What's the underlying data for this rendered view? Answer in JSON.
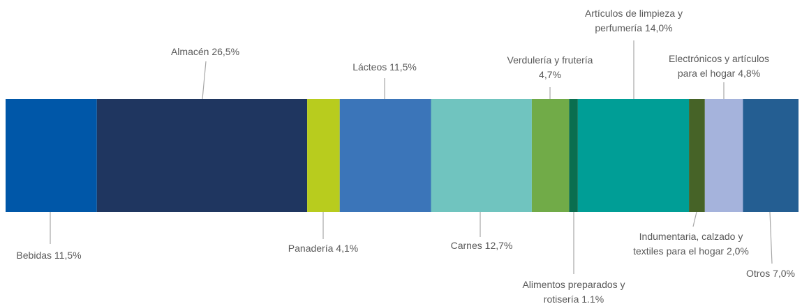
{
  "chart_data": {
    "type": "stacked_bar",
    "categories": [
      [
        "Bebidas"
      ],
      [
        "Almacén"
      ],
      [
        "Panadería"
      ],
      [
        "Lácteos"
      ],
      [
        "Carnes"
      ],
      [
        "Verdulería y frutería"
      ],
      [
        "Alimentos preparados y",
        "rotisería"
      ],
      [
        "Artículos de limpieza y",
        "perfumería"
      ],
      [
        "Indumentaria, calzado y",
        "textiles para el hogar"
      ],
      [
        "Electrónicos y artículos",
        "para el hogar"
      ],
      [
        "Otros"
      ]
    ],
    "values": [
      11.5,
      26.5,
      4.1,
      11.5,
      12.7,
      4.7,
      1.1,
      14.0,
      2.0,
      4.8,
      7.0
    ],
    "value_labels": [
      "11,5%",
      "26,5%",
      "4,1%",
      "11,5%",
      "12,7%",
      "4,7%",
      "1.1%",
      "14,0%",
      "2,0%",
      "4,8%",
      "7,0%"
    ],
    "colors": [
      "#0057a8",
      "#1f3660",
      "#b8cc1e",
      "#3b75b9",
      "#70c4bf",
      "#71ab48",
      "#0a6e4f",
      "#009e96",
      "#466327",
      "#a5b3dc",
      "#245e92"
    ]
  }
}
